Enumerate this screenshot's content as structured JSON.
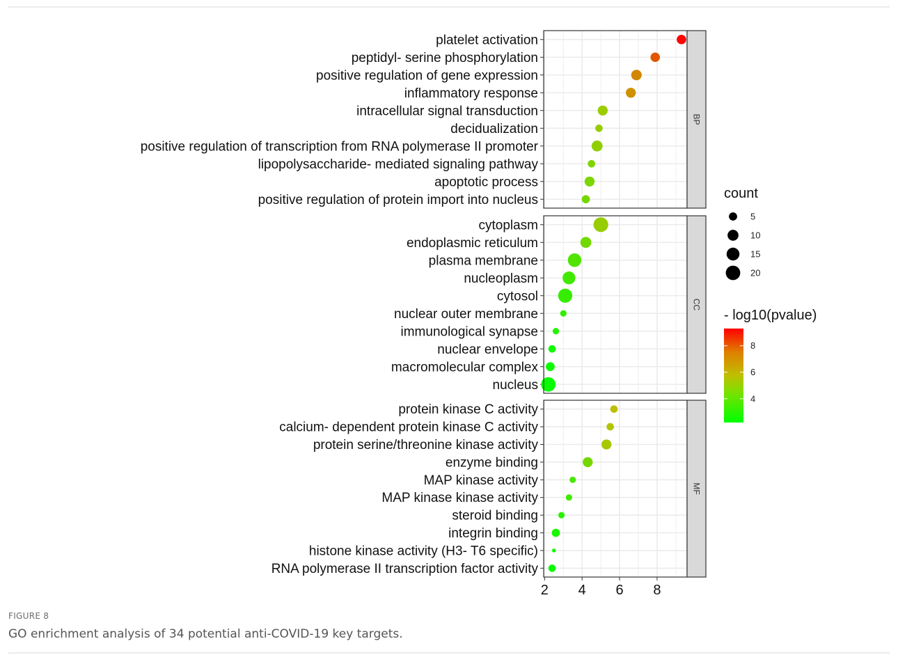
{
  "figure": {
    "label": "FIGURE 8",
    "caption": "GO enrichment analysis of 34 potential anti-COVID-19 key targets."
  },
  "colors": {
    "low": "#00ff00",
    "mid": "#bfbf00",
    "high": "#ff0000",
    "panel_border": "#333333",
    "grid": "#ebebeb",
    "strip_fill": "#d9d9d9"
  },
  "chart_data": {
    "type": "scatter",
    "xlabel": "",
    "ylabel": "",
    "title": "",
    "xlim": [
      1.95,
      9.6
    ],
    "x_ticks": [
      "2",
      "4",
      "6",
      "8"
    ],
    "grid": true,
    "legend_position": "right",
    "facets": [
      {
        "name": "BP",
        "terms": [
          {
            "label": "platelet activation",
            "x": 9.3,
            "count": 7,
            "log10p": 9.2
          },
          {
            "label": "peptidyl- serine phosphorylation",
            "x": 7.9,
            "count": 7,
            "log10p": 7.7
          },
          {
            "label": "positive regulation of gene expression",
            "x": 6.9,
            "count": 9,
            "log10p": 6.8
          },
          {
            "label": "inflammatory response",
            "x": 6.6,
            "count": 8,
            "log10p": 6.6
          },
          {
            "label": "intracellular signal transduction",
            "x": 5.1,
            "count": 8,
            "log10p": 5.1
          },
          {
            "label": "decidualization",
            "x": 4.9,
            "count": 4,
            "log10p": 5.0
          },
          {
            "label": "positive regulation of transcription from RNA polymerase II promoter",
            "x": 4.8,
            "count": 10,
            "log10p": 4.9
          },
          {
            "label": "lipopolysaccharide- mediated signaling pathway",
            "x": 4.5,
            "count": 4,
            "log10p": 4.6
          },
          {
            "label": "apoptotic process",
            "x": 4.4,
            "count": 8,
            "log10p": 4.5
          },
          {
            "label": "positive regulation of protein import into nucleus",
            "x": 4.2,
            "count": 5,
            "log10p": 4.4
          }
        ]
      },
      {
        "name": "CC",
        "terms": [
          {
            "label": "cytoplasm",
            "x": 5.0,
            "count": 21,
            "log10p": 5.0
          },
          {
            "label": "endoplasmic reticulum",
            "x": 4.2,
            "count": 10,
            "log10p": 4.3
          },
          {
            "label": "plasma membrane",
            "x": 3.6,
            "count": 17,
            "log10p": 3.7
          },
          {
            "label": "nucleoplasm",
            "x": 3.3,
            "count": 15,
            "log10p": 3.4
          },
          {
            "label": "cytosol",
            "x": 3.1,
            "count": 19,
            "log10p": 3.2
          },
          {
            "label": "nuclear outer membrane",
            "x": 3.0,
            "count": 3,
            "log10p": 3.1
          },
          {
            "label": "immunological synapse",
            "x": 2.6,
            "count": 3,
            "log10p": 2.8
          },
          {
            "label": "nuclear envelope",
            "x": 2.4,
            "count": 4,
            "log10p": 2.5
          },
          {
            "label": "macromolecular complex",
            "x": 2.3,
            "count": 6,
            "log10p": 2.4
          },
          {
            "label": "nucleus",
            "x": 2.2,
            "count": 20,
            "log10p": 2.3
          }
        ]
      },
      {
        "name": "MF",
        "terms": [
          {
            "label": "protein kinase C activity",
            "x": 5.7,
            "count": 4,
            "log10p": 5.7
          },
          {
            "label": "calcium- dependent protein kinase C activity",
            "x": 5.5,
            "count": 4,
            "log10p": 5.5
          },
          {
            "label": "protein serine/threonine kinase activity",
            "x": 5.3,
            "count": 8,
            "log10p": 5.3
          },
          {
            "label": "enzyme binding",
            "x": 4.3,
            "count": 8,
            "log10p": 4.4
          },
          {
            "label": "MAP kinase activity",
            "x": 3.5,
            "count": 3,
            "log10p": 3.6
          },
          {
            "label": "MAP kinase kinase activity",
            "x": 3.3,
            "count": 3,
            "log10p": 3.4
          },
          {
            "label": "steroid binding",
            "x": 2.9,
            "count": 3,
            "log10p": 3.0
          },
          {
            "label": "integrin binding",
            "x": 2.6,
            "count": 5,
            "log10p": 2.7
          },
          {
            "label": "histone kinase activity (H3- T6 specific)",
            "x": 2.5,
            "count": 2,
            "log10p": 2.5
          },
          {
            "label": "RNA polymerase II transcription factor activity",
            "x": 2.4,
            "count": 4,
            "log10p": 2.4
          }
        ]
      }
    ],
    "size_legend": {
      "title": "count",
      "breaks": [
        5,
        10,
        15,
        20
      ],
      "labels": [
        "5",
        "10",
        "15",
        "20"
      ]
    },
    "color_legend": {
      "title": "- log10(pvalue)",
      "range": [
        2.2,
        9.3
      ],
      "breaks": [
        4,
        6,
        8
      ],
      "labels": [
        "4",
        "6",
        "8"
      ]
    }
  }
}
